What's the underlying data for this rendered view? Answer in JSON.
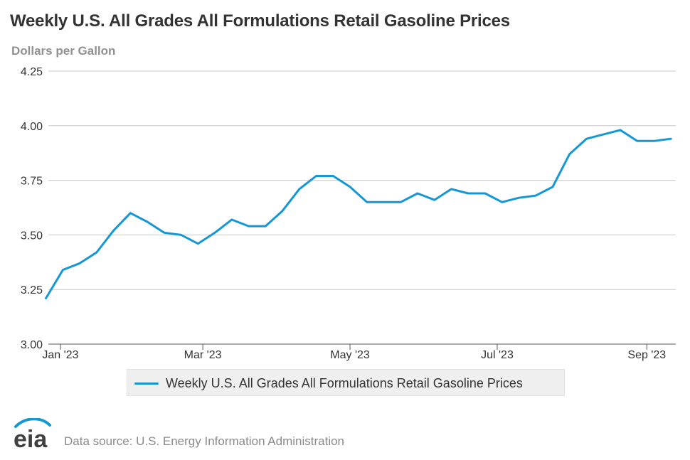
{
  "header": {
    "title": "Weekly U.S. All Grades All Formulations Retail Gasoline Prices",
    "units": "Dollars per Gallon"
  },
  "legend": {
    "label": "Weekly U.S. All Grades All Formulations Retail Gasoline Prices"
  },
  "footer": {
    "logo_text": "eia",
    "source": "Data source: U.S. Energy Information Administration"
  },
  "colors": {
    "series": "#1597d4",
    "grid": "#c8c8c8",
    "axis_text": "#333333",
    "logo_blue": "#1597d4",
    "logo_dark": "#404040"
  },
  "chart_data": {
    "type": "line",
    "title": "Weekly U.S. All Grades All Formulations Retail Gasoline Prices",
    "ylabel": "Dollars per Gallon",
    "xlabel": "",
    "ylim": [
      3.0,
      4.25
    ],
    "yticks": [
      "3.00",
      "3.25",
      "3.50",
      "3.75",
      "4.00",
      "4.25"
    ],
    "xticks": [
      {
        "date": "2023-01-01",
        "label": "Jan '23"
      },
      {
        "date": "2023-03-01",
        "label": "Mar '23"
      },
      {
        "date": "2023-05-01",
        "label": "May '23"
      },
      {
        "date": "2023-07-01",
        "label": "Jul '23"
      },
      {
        "date": "2023-09-01",
        "label": "Sep '23"
      }
    ],
    "xlim": [
      "2022-12-27",
      "2023-09-13"
    ],
    "grid": true,
    "legend_position": "bottom",
    "series": [
      {
        "name": "Weekly U.S. All Grades All Formulations Retail Gasoline Prices",
        "points": [
          {
            "x": "2022-12-26",
            "y": 3.21
          },
          {
            "x": "2023-01-02",
            "y": 3.34
          },
          {
            "x": "2023-01-09",
            "y": 3.37
          },
          {
            "x": "2023-01-16",
            "y": 3.42
          },
          {
            "x": "2023-01-23",
            "y": 3.52
          },
          {
            "x": "2023-01-30",
            "y": 3.6
          },
          {
            "x": "2023-02-06",
            "y": 3.56
          },
          {
            "x": "2023-02-13",
            "y": 3.51
          },
          {
            "x": "2023-02-20",
            "y": 3.5
          },
          {
            "x": "2023-02-27",
            "y": 3.46
          },
          {
            "x": "2023-03-06",
            "y": 3.51
          },
          {
            "x": "2023-03-13",
            "y": 3.57
          },
          {
            "x": "2023-03-20",
            "y": 3.54
          },
          {
            "x": "2023-03-27",
            "y": 3.54
          },
          {
            "x": "2023-04-03",
            "y": 3.61
          },
          {
            "x": "2023-04-10",
            "y": 3.71
          },
          {
            "x": "2023-04-17",
            "y": 3.77
          },
          {
            "x": "2023-04-24",
            "y": 3.77
          },
          {
            "x": "2023-05-01",
            "y": 3.72
          },
          {
            "x": "2023-05-08",
            "y": 3.65
          },
          {
            "x": "2023-05-15",
            "y": 3.65
          },
          {
            "x": "2023-05-22",
            "y": 3.65
          },
          {
            "x": "2023-05-29",
            "y": 3.69
          },
          {
            "x": "2023-06-05",
            "y": 3.66
          },
          {
            "x": "2023-06-12",
            "y": 3.71
          },
          {
            "x": "2023-06-19",
            "y": 3.69
          },
          {
            "x": "2023-06-26",
            "y": 3.69
          },
          {
            "x": "2023-07-03",
            "y": 3.65
          },
          {
            "x": "2023-07-10",
            "y": 3.67
          },
          {
            "x": "2023-07-17",
            "y": 3.68
          },
          {
            "x": "2023-07-24",
            "y": 3.72
          },
          {
            "x": "2023-07-31",
            "y": 3.87
          },
          {
            "x": "2023-08-07",
            "y": 3.94
          },
          {
            "x": "2023-08-14",
            "y": 3.96
          },
          {
            "x": "2023-08-21",
            "y": 3.98
          },
          {
            "x": "2023-08-28",
            "y": 3.93
          },
          {
            "x": "2023-09-04",
            "y": 3.93
          },
          {
            "x": "2023-09-11",
            "y": 3.94
          }
        ]
      }
    ]
  }
}
